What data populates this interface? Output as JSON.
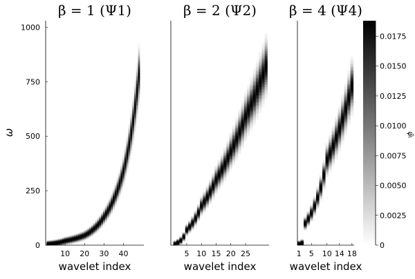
{
  "chart_data": [
    {
      "type": "heatmap",
      "title": "β = 1 (Ψ1)",
      "xlabel": "wavelet index",
      "ylabel": "ω",
      "xlim": [
        0,
        50.5
      ],
      "ylim": [
        0,
        1030
      ],
      "xticks": [
        10,
        20,
        30,
        40
      ],
      "yticks": [
        0,
        250,
        500,
        750,
        1000
      ],
      "n_wavelets": 48,
      "center_frequency_by_index": [
        [
          1,
          5
        ],
        [
          10,
          20
        ],
        [
          20,
          45
        ],
        [
          30,
          130
        ],
        [
          40,
          340
        ],
        [
          48,
          780
        ]
      ],
      "grid": false
    },
    {
      "type": "heatmap",
      "title": "β = 2 (Ψ2)",
      "xlabel": "wavelet index",
      "xlim": [
        -0.4,
        33
      ],
      "ylim": [
        0,
        1030
      ],
      "xticks": [
        5,
        10,
        15,
        20,
        25
      ],
      "n_wavelets": 32,
      "center_frequency_by_index": [
        [
          1,
          5
        ],
        [
          2,
          12
        ],
        [
          5,
          70
        ],
        [
          10,
          180
        ],
        [
          15,
          300
        ],
        [
          20,
          430
        ],
        [
          25,
          590
        ],
        [
          32,
          820
        ]
      ],
      "grid": false
    },
    {
      "type": "heatmap",
      "title": "β = 4 (Ψ4)",
      "xlabel": "wavelet index",
      "xlim": [
        0.5,
        18.7
      ],
      "ylim": [
        0,
        1030
      ],
      "xticks": [
        1,
        5,
        10,
        14,
        18
      ],
      "n_wavelets": 18,
      "center_frequency_by_index": [
        [
          1,
          5
        ],
        [
          2,
          10
        ],
        [
          3,
          100
        ],
        [
          10,
          390
        ],
        [
          18,
          730
        ]
      ],
      "grid": false
    }
  ],
  "colorbar": {
    "label": "ψ̂ᵢ",
    "range": [
      0,
      0.0188
    ],
    "ticks": [
      "0",
      "0.0025",
      "0.0050",
      "0.0075",
      "0.0100",
      "0.0125",
      "0.0150",
      "0.0175"
    ],
    "colormap": [
      "#ffffff",
      "#000000"
    ]
  }
}
